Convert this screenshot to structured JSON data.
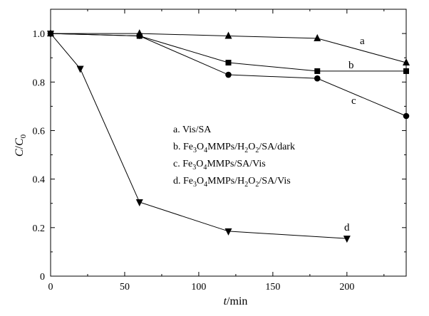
{
  "chart_data": {
    "type": "line",
    "title": "",
    "xlabel": {
      "var": "t",
      "unit": "/min"
    },
    "ylabel": {
      "var": "C",
      "sep": "/",
      "var2": "C",
      "sub": "0"
    },
    "xlim": [
      0,
      240
    ],
    "ylim": [
      0,
      1.1
    ],
    "xticks": [
      0,
      50,
      100,
      150,
      200
    ],
    "yticks": [
      0,
      0.2,
      0.4,
      0.6,
      0.8,
      1.0
    ],
    "xtick_labels": [
      "0",
      "50",
      "100",
      "150",
      "200"
    ],
    "ytick_labels": [
      "0",
      "0.2",
      "0.4",
      "0.6",
      "0.8",
      "1.0"
    ],
    "grid": false,
    "legend_position": "center-right",
    "series": [
      {
        "id": "a",
        "marker": "triangle-up",
        "x": [
          0,
          60,
          120,
          180,
          240
        ],
        "y": [
          1.0,
          1.0,
          0.99,
          0.98,
          0.88
        ],
        "curve_label": "a",
        "legend": [
          {
            "t": "a. Vis/SA"
          }
        ]
      },
      {
        "id": "b",
        "marker": "square",
        "x": [
          0,
          60,
          120,
          180,
          240
        ],
        "y": [
          1.0,
          0.99,
          0.88,
          0.845,
          0.845
        ],
        "curve_label": "b",
        "legend": [
          {
            "t": "b.  Fe"
          },
          {
            "t": "3",
            "sub": true
          },
          {
            "t": "O"
          },
          {
            "t": "4",
            "sub": true
          },
          {
            "t": "MMPs/H"
          },
          {
            "t": "2",
            "sub": true
          },
          {
            "t": "O"
          },
          {
            "t": "2",
            "sub": true
          },
          {
            "t": "/SA/dark"
          }
        ]
      },
      {
        "id": "c",
        "marker": "circle",
        "x": [
          0,
          60,
          120,
          180,
          240
        ],
        "y": [
          1.0,
          0.99,
          0.83,
          0.815,
          0.66
        ],
        "curve_label": "c",
        "legend": [
          {
            "t": "c.  Fe"
          },
          {
            "t": "3",
            "sub": true
          },
          {
            "t": "O"
          },
          {
            "t": "4",
            "sub": true
          },
          {
            "t": "MMPs/SA/Vis"
          }
        ]
      },
      {
        "id": "d",
        "marker": "triangle-down",
        "x": [
          0,
          20,
          60,
          120,
          200
        ],
        "y": [
          1.0,
          0.855,
          0.305,
          0.185,
          0.155
        ],
        "curve_label": "d",
        "legend": [
          {
            "t": "d.  Fe"
          },
          {
            "t": "3",
            "sub": true
          },
          {
            "t": "O"
          },
          {
            "t": "4",
            "sub": true
          },
          {
            "t": "MMPs/H"
          },
          {
            "t": "2",
            "sub": true
          },
          {
            "t": "O"
          },
          {
            "t": "2",
            "sub": true
          },
          {
            "t": "/SA/Vis"
          }
        ]
      }
    ]
  }
}
